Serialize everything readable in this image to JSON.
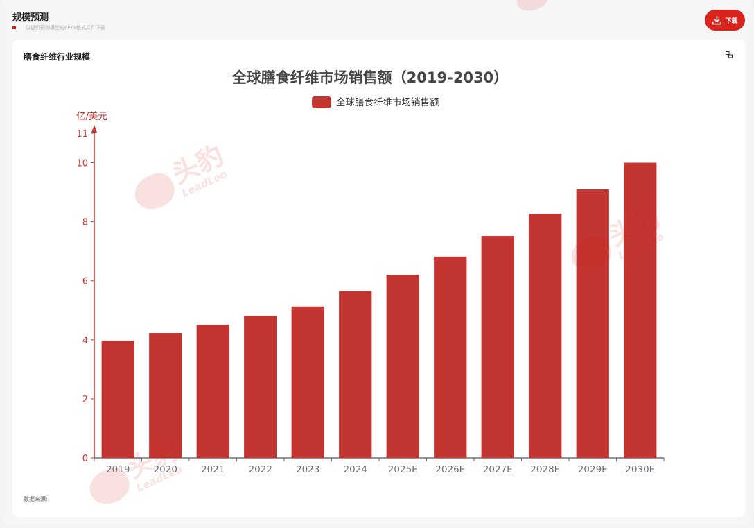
{
  "page": {
    "title": "规模预测",
    "subtitle": "仅提供预测模型的PPTx格式文件下载",
    "download_label": "下载"
  },
  "card": {
    "title": "膳食纤维行业规模",
    "source_label": "数据来源:"
  },
  "watermark": {
    "cn": "头豹",
    "en": "LeadLeo"
  },
  "colors": {
    "accent": "#d9231d",
    "bar": "#c23531",
    "axis": "#c23531",
    "xaxis": "#6e7079"
  },
  "chart_data": {
    "type": "bar",
    "title": "全球膳食纤维市场销售额（2019-2030）",
    "legend_position": "top-center",
    "y_unit_label": "亿/美元",
    "ylim": [
      0,
      11
    ],
    "y_ticks": [
      0,
      2,
      4,
      6,
      8,
      10,
      11
    ],
    "grid": false,
    "categories": [
      "2019",
      "2020",
      "2021",
      "2022",
      "2023",
      "2024",
      "2025E",
      "2026E",
      "2027E",
      "2028E",
      "2029E",
      "2030E"
    ],
    "series": [
      {
        "name": "全球膳食纤维市场销售额",
        "values": [
          3.97,
          4.23,
          4.51,
          4.81,
          5.13,
          5.65,
          6.2,
          6.82,
          7.52,
          8.27,
          9.1,
          10.0
        ]
      }
    ]
  }
}
